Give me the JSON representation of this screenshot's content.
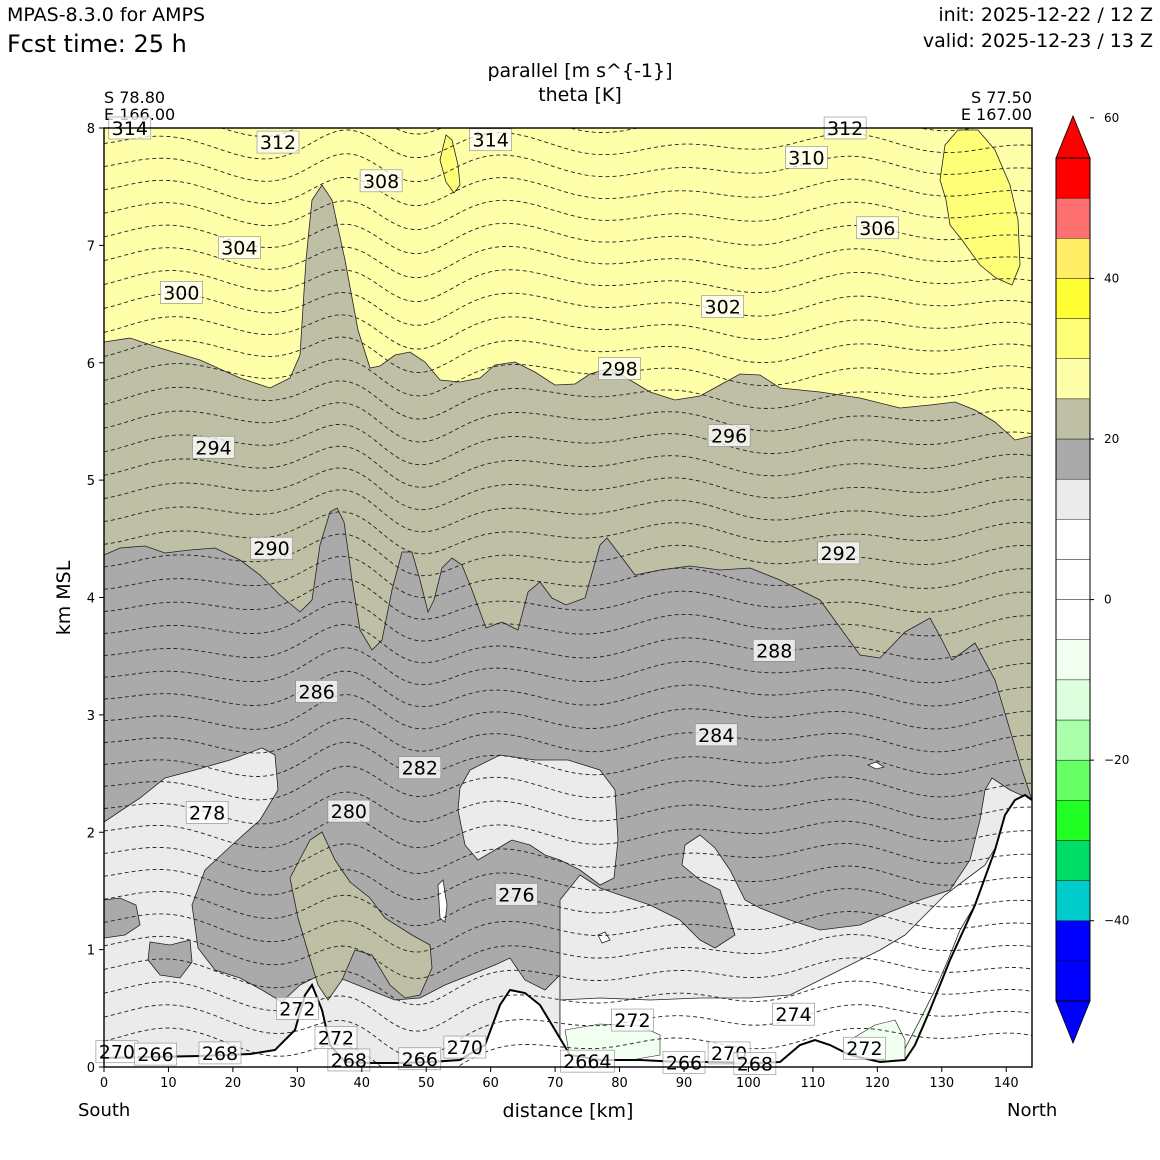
{
  "header": {
    "model": "MPAS-8.3.0 for AMPS",
    "fcst_time": "Fcst time:   25 h",
    "init": "init: 2025-12-22 / 12 Z",
    "valid": "valid: 2025-12-23 / 13 Z"
  },
  "chart_data": {
    "type": "cross-section contour",
    "title": [
      "parallel [m s^{-1}]",
      "theta [K]"
    ],
    "xlabel": "distance [km]",
    "ylabel": "km MSL",
    "xlim": [
      0,
      144
    ],
    "ylim": [
      0,
      8
    ],
    "x_ticks": [
      0,
      10,
      20,
      30,
      40,
      50,
      60,
      70,
      80,
      90,
      100,
      110,
      120,
      130,
      140
    ],
    "y_ticks": [
      0,
      1,
      2,
      3,
      4,
      5,
      6,
      7,
      8
    ],
    "endpoints": {
      "left": {
        "lat": "S 78.80",
        "lon": "E 166.00",
        "label": "South"
      },
      "right": {
        "lat": "S 77.50",
        "lon": "E 167.00",
        "label": "North"
      }
    },
    "colorbar": {
      "levels": [
        -50,
        -45,
        -40,
        -35,
        -30,
        -25,
        -20,
        -15,
        -10,
        -5,
        0,
        5,
        10,
        15,
        20,
        25,
        30,
        35,
        40,
        45,
        50,
        55
      ],
      "tick_values": [
        -40,
        -20,
        0,
        20,
        40,
        60
      ],
      "tick_labels": [
        "−40",
        "−20",
        "0",
        "20",
        "40",
        "60"
      ],
      "under_color": "#0000ff",
      "over_color": "#ff0000",
      "colors": [
        "#0000ff",
        "#0000ff",
        "#00cccc",
        "#00dd66",
        "#22ff22",
        "#66ff66",
        "#aaffaa",
        "#ddffdd",
        "#f0fff0",
        "#ffffff",
        "#ffffff",
        "#ffffff",
        "#ebebeb",
        "#aaaaaa",
        "#bfbfa6",
        "#ffffaa",
        "#ffff77",
        "#ffff33",
        "#ffee66",
        "#ff7070",
        "#ff0000"
      ]
    },
    "theta_labels": [
      {
        "text": "314",
        "x": 4,
        "y": 8.0
      },
      {
        "text": "312",
        "x": 27,
        "y": 7.88
      },
      {
        "text": "314",
        "x": 60,
        "y": 7.9
      },
      {
        "text": "312",
        "x": 115,
        "y": 8.0
      },
      {
        "text": "308",
        "x": 43,
        "y": 7.55
      },
      {
        "text": "310",
        "x": 109,
        "y": 7.75
      },
      {
        "text": "304",
        "x": 21,
        "y": 6.98
      },
      {
        "text": "306",
        "x": 120,
        "y": 7.15
      },
      {
        "text": "300",
        "x": 12,
        "y": 6.6
      },
      {
        "text": "302",
        "x": 96,
        "y": 6.48
      },
      {
        "text": "298",
        "x": 80,
        "y": 5.95
      },
      {
        "text": "294",
        "x": 17,
        "y": 5.28
      },
      {
        "text": "296",
        "x": 97,
        "y": 5.38
      },
      {
        "text": "290",
        "x": 26,
        "y": 4.42
      },
      {
        "text": "292",
        "x": 114,
        "y": 4.38
      },
      {
        "text": "288",
        "x": 104,
        "y": 3.55
      },
      {
        "text": "286",
        "x": 33,
        "y": 3.2
      },
      {
        "text": "284",
        "x": 95,
        "y": 2.83
      },
      {
        "text": "282",
        "x": 49,
        "y": 2.55
      },
      {
        "text": "280",
        "x": 38,
        "y": 2.18
      },
      {
        "text": "278",
        "x": 16,
        "y": 2.17
      },
      {
        "text": "276",
        "x": 64,
        "y": 1.47
      },
      {
        "text": "274",
        "x": 107,
        "y": 0.45
      },
      {
        "text": "272",
        "x": 30,
        "y": 0.5
      },
      {
        "text": "272",
        "x": 36,
        "y": 0.25
      },
      {
        "text": "272",
        "x": 82,
        "y": 0.4
      },
      {
        "text": "272",
        "x": 118,
        "y": 0.16
      },
      {
        "text": "270",
        "x": 2,
        "y": 0.13
      },
      {
        "text": "266",
        "x": 8,
        "y": 0.11
      },
      {
        "text": "268",
        "x": 18,
        "y": 0.12
      },
      {
        "text": "268",
        "x": 38,
        "y": 0.06
      },
      {
        "text": "266",
        "x": 49,
        "y": 0.07
      },
      {
        "text": "270",
        "x": 56,
        "y": 0.17
      },
      {
        "text": "2664",
        "x": 75,
        "y": 0.05
      },
      {
        "text": "266",
        "x": 90,
        "y": 0.04
      },
      {
        "text": "270",
        "x": 97,
        "y": 0.12
      },
      {
        "text": "268",
        "x": 101,
        "y": 0.03
      }
    ]
  }
}
